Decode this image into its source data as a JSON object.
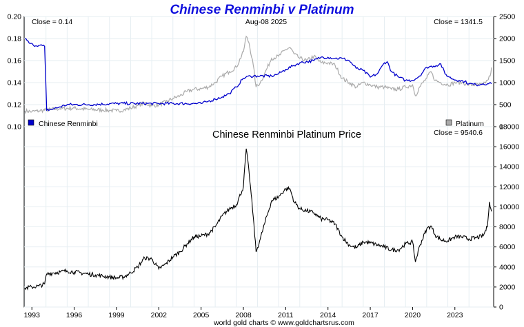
{
  "chart_data": [
    {
      "type": "line",
      "title": "Chinese Renminbi v Platinum",
      "date_label": "Aug-08  2025",
      "left_readout": "Close = 0.14",
      "right_readout": "Close = 1341.5",
      "left_axis": {
        "ylim": [
          0.1,
          0.2
        ],
        "ticks": [
          "0.10",
          "0.12",
          "0.14",
          "0.16",
          "0.18",
          "0.20"
        ]
      },
      "right_axis": {
        "ylim": [
          0,
          2500
        ],
        "ticks": [
          "0",
          "500",
          "1000",
          "1500",
          "2000",
          "2500"
        ]
      },
      "x_ticks": [
        "1993",
        "1996",
        "1999",
        "2002",
        "2005",
        "2008",
        "2011",
        "2014",
        "2017",
        "2020",
        "2023"
      ],
      "grid": true,
      "legend": [
        {
          "label": "Chinese Renminbi",
          "color": "#0000cc",
          "position": "bottom-left"
        },
        {
          "label": "Platinum",
          "color": "#aaaaaa",
          "position": "bottom-right"
        }
      ],
      "series": [
        {
          "name": "Chinese Renminbi",
          "axis": "left",
          "color": "#0000cc",
          "x": [
            1992.5,
            1992.8,
            1993.1,
            1993.5,
            1993.9,
            1994.05,
            1994.5,
            1995.0,
            1995.5,
            1997.0,
            1999.0,
            2002.0,
            2005.0,
            2005.5,
            2006.0,
            2006.5,
            2007.0,
            2007.5,
            2008.0,
            2008.5,
            2009.0,
            2010.0,
            2010.5,
            2011.0,
            2011.5,
            2012.0,
            2013.0,
            2013.5,
            2014.0,
            2014.5,
            2015.0,
            2015.5,
            2016.0,
            2016.5,
            2017.0,
            2017.5,
            2018.0,
            2018.2,
            2018.5,
            2019.0,
            2019.5,
            2020.0,
            2020.5,
            2021.0,
            2021.5,
            2022.0,
            2022.3,
            2022.6,
            2022.9,
            2023.3,
            2023.7,
            2024.0,
            2024.5,
            2025.0,
            2025.4,
            2025.6
          ],
          "y": [
            0.18,
            0.176,
            0.174,
            0.174,
            0.173,
            0.115,
            0.116,
            0.118,
            0.12,
            0.12,
            0.121,
            0.121,
            0.121,
            0.123,
            0.125,
            0.127,
            0.13,
            0.136,
            0.144,
            0.146,
            0.146,
            0.146,
            0.148,
            0.152,
            0.155,
            0.158,
            0.16,
            0.163,
            0.163,
            0.162,
            0.162,
            0.16,
            0.153,
            0.151,
            0.145,
            0.148,
            0.158,
            0.159,
            0.15,
            0.145,
            0.142,
            0.142,
            0.146,
            0.154,
            0.155,
            0.157,
            0.148,
            0.145,
            0.143,
            0.142,
            0.141,
            0.139,
            0.138,
            0.139,
            0.139,
            0.139
          ]
        },
        {
          "name": "Platinum",
          "axis": "right",
          "color": "#aaaaaa",
          "x": [
            1992.5,
            1993.0,
            1993.5,
            1994.0,
            1995.0,
            1996.0,
            1997.0,
            1998.0,
            1998.5,
            1999.0,
            1999.5,
            2000.0,
            2000.5,
            2001.0,
            2001.5,
            2002.0,
            2002.5,
            2003.0,
            2003.5,
            2004.0,
            2004.5,
            2005.0,
            2005.5,
            2006.0,
            2006.5,
            2007.0,
            2007.5,
            2008.0,
            2008.2,
            2008.4,
            2008.7,
            2008.9,
            2009.2,
            2009.5,
            2010.0,
            2010.5,
            2011.0,
            2011.3,
            2011.6,
            2012.0,
            2012.5,
            2013.0,
            2013.5,
            2014.0,
            2014.5,
            2015.0,
            2015.5,
            2016.0,
            2016.5,
            2017.0,
            2017.5,
            2018.0,
            2018.5,
            2019.0,
            2019.5,
            2020.0,
            2020.2,
            2020.5,
            2021.0,
            2021.3,
            2021.6,
            2022.0,
            2022.5,
            2023.0,
            2023.5,
            2024.0,
            2024.5,
            2025.0,
            2025.3,
            2025.5,
            2025.6
          ],
          "y": [
            360,
            340,
            360,
            380,
            410,
            420,
            390,
            380,
            370,
            360,
            380,
            420,
            480,
            540,
            470,
            500,
            560,
            640,
            700,
            800,
            850,
            860,
            900,
            1000,
            1150,
            1250,
            1350,
            1700,
            2050,
            1900,
            1400,
            900,
            1000,
            1200,
            1550,
            1600,
            1750,
            1800,
            1650,
            1550,
            1500,
            1600,
            1450,
            1450,
            1400,
            1100,
            1000,
            900,
            1000,
            950,
            900,
            900,
            850,
            850,
            900,
            950,
            700,
            900,
            1100,
            1250,
            1050,
            1000,
            950,
            1000,
            1000,
            950,
            950,
            950,
            1050,
            1150,
            1341.5
          ]
        }
      ]
    },
    {
      "type": "line",
      "title": "Chinese Renminbi Platinum Price",
      "right_readout": "Close = 9540.6",
      "ylim": [
        0,
        18000
      ],
      "y_ticks": [
        "0",
        "2000",
        "4000",
        "6000",
        "8000",
        "10000",
        "12000",
        "14000",
        "16000",
        "18000"
      ],
      "x_ticks": [
        "1993",
        "1996",
        "1999",
        "2002",
        "2005",
        "2008",
        "2011",
        "2014",
        "2017",
        "2020",
        "2023"
      ],
      "grid": true,
      "series": [
        {
          "color": "#000000",
          "x": [
            1992.5,
            1993.0,
            1993.5,
            1993.9,
            1994.05,
            1994.5,
            1995.0,
            1995.5,
            1996.0,
            1996.5,
            1997.0,
            1997.5,
            1998.0,
            1998.5,
            1999.0,
            1999.5,
            2000.0,
            2000.5,
            2001.0,
            2001.5,
            2002.0,
            2002.5,
            2003.0,
            2003.5,
            2004.0,
            2004.5,
            2005.0,
            2005.5,
            2006.0,
            2006.5,
            2007.0,
            2007.5,
            2008.0,
            2008.2,
            2008.4,
            2008.7,
            2008.9,
            2009.2,
            2009.5,
            2010.0,
            2010.5,
            2011.0,
            2011.3,
            2011.6,
            2012.0,
            2012.5,
            2013.0,
            2013.5,
            2014.0,
            2014.5,
            2015.0,
            2015.5,
            2016.0,
            2016.5,
            2017.0,
            2017.5,
            2018.0,
            2018.5,
            2019.0,
            2019.5,
            2020.0,
            2020.2,
            2020.5,
            2021.0,
            2021.3,
            2021.6,
            2022.0,
            2022.5,
            2023.0,
            2023.5,
            2024.0,
            2024.5,
            2025.0,
            2025.3,
            2025.45,
            2025.6
          ],
          "y": [
            1900,
            2000,
            2100,
            2300,
            3300,
            3400,
            3500,
            3600,
            3500,
            3400,
            3300,
            3200,
            3100,
            3000,
            2900,
            3000,
            3400,
            4000,
            4900,
            4800,
            3800,
            4300,
            5000,
            5500,
            6300,
            7000,
            7100,
            7300,
            8000,
            9100,
            9800,
            10200,
            12000,
            15800,
            13500,
            9000,
            5500,
            6800,
            8300,
            10600,
            11000,
            11800,
            11800,
            10500,
            9800,
            9600,
            9400,
            8800,
            8700,
            8300,
            7000,
            6200,
            5900,
            6500,
            6400,
            6200,
            6000,
            5700,
            5700,
            6300,
            6500,
            4500,
            6100,
            7800,
            8100,
            7200,
            6700,
            6600,
            7000,
            7000,
            6800,
            6900,
            7100,
            8000,
            10500,
            9540.6
          ]
        }
      ]
    }
  ],
  "footer": "world gold charts © www.goldchartsrus.com"
}
